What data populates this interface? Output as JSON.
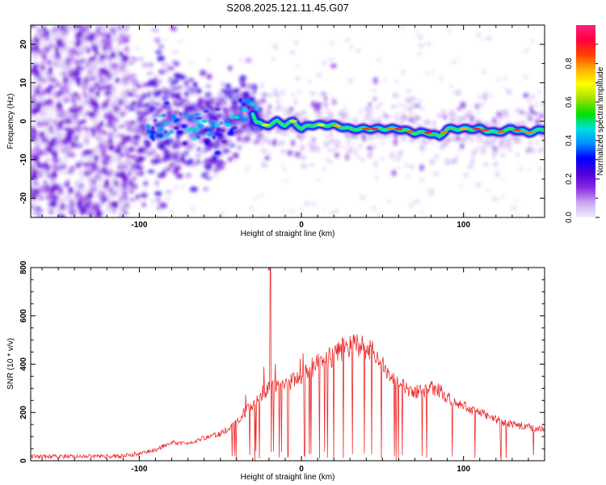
{
  "figure": {
    "title": "S208.2025.121.11.45.G07"
  },
  "chart_data": [
    {
      "type": "heatmap",
      "xlabel": "Height of straight line (km)",
      "ylabel": "Frequency (Hz)",
      "xlim": [
        -167,
        150
      ],
      "ylim": [
        -25,
        25
      ],
      "xticks": [
        -100,
        0,
        100
      ],
      "yticks": [
        -20,
        -10,
        0,
        10,
        20
      ],
      "colorbar": {
        "label": "Normalized spectral amplitude",
        "range": [
          0,
          1
        ],
        "ticks": [
          0.0,
          0.2,
          0.4,
          0.6,
          0.8
        ],
        "colors": [
          "#f4eefc",
          "#c9a6f1",
          "#8a2be2",
          "#4b00d9",
          "#0000ff",
          "#0090ff",
          "#00e0e0",
          "#00e000",
          "#9fe000",
          "#ffff00",
          "#ffb000",
          "#ff4000",
          "#ff0040",
          "#ff2080"
        ]
      },
      "ridge": {
        "x": [
          -105,
          -95,
          -85,
          -75,
          -65,
          -55,
          -45,
          -38,
          -32,
          -28,
          -24,
          -20,
          -15,
          -10,
          -5,
          0,
          5,
          10,
          15,
          20,
          30,
          40,
          50,
          60,
          70,
          78,
          85,
          90,
          95,
          100,
          110,
          120,
          130,
          140,
          150
        ],
        "y": [
          -3,
          -2,
          -1,
          -1,
          -1,
          -2,
          0,
          2,
          4,
          0,
          -1,
          -1,
          0,
          -1,
          0,
          -2,
          -1,
          -1,
          -1,
          -1,
          -2,
          -2,
          -2,
          -2,
          -3,
          -3,
          -4,
          -2,
          -2,
          -2,
          -2,
          -3,
          -2,
          -3,
          -2
        ]
      },
      "scatter_extent": {
        "dense_noise_x": [
          -167,
          -107
        ],
        "transition_x": [
          -107,
          -25
        ],
        "ridge_x": [
          -25,
          150
        ]
      }
    },
    {
      "type": "line",
      "color": "#ee2c2c",
      "xlabel": "Height of straight line (km)",
      "ylabel": "SNR (10 * v/v)",
      "xlim": [
        -167,
        150
      ],
      "ylim": [
        0,
        800
      ],
      "xticks": [
        -100,
        0,
        100
      ],
      "yticks": [
        0,
        200,
        400,
        600,
        800
      ],
      "envelope": {
        "x": [
          -167,
          -120,
          -110,
          -100,
          -90,
          -80,
          -70,
          -60,
          -50,
          -40,
          -35,
          -30,
          -25,
          -20,
          -15,
          -10,
          -5,
          0,
          5,
          10,
          15,
          20,
          25,
          30,
          35,
          40,
          45,
          50,
          55,
          60,
          65,
          70,
          75,
          80,
          85,
          90,
          95,
          100,
          105,
          110,
          115,
          120,
          125,
          130,
          135,
          140,
          145,
          150
        ],
        "y": [
          18,
          18,
          20,
          30,
          45,
          75,
          70,
          95,
          110,
          160,
          200,
          240,
          260,
          295,
          310,
          320,
          330,
          355,
          380,
          400,
          420,
          440,
          465,
          480,
          485,
          470,
          440,
          400,
          360,
          320,
          295,
          290,
          285,
          300,
          290,
          260,
          240,
          225,
          210,
          200,
          185,
          170,
          160,
          150,
          145,
          140,
          135,
          130
        ]
      },
      "spike": {
        "x": -19,
        "y": 810
      }
    }
  ]
}
